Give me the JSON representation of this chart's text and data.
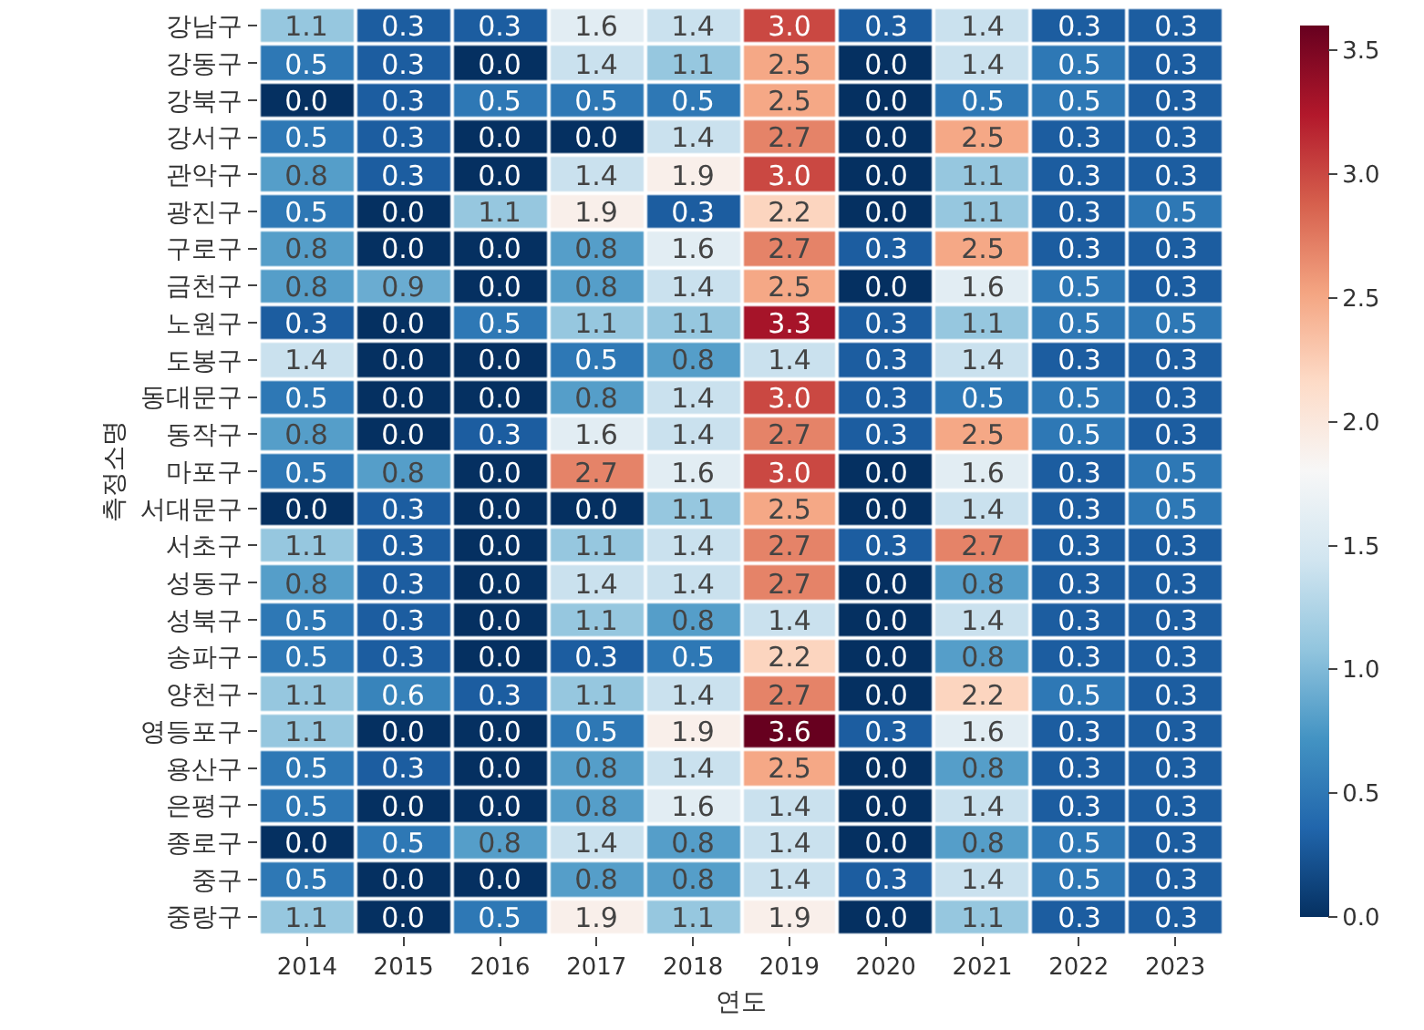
{
  "chart_data": {
    "type": "heatmap",
    "xlabel": "연도",
    "ylabel": "측정소명",
    "clim": [
      0,
      3.6
    ],
    "cticks": [
      {
        "value": 0,
        "label": "0.0"
      },
      {
        "value": 0.5,
        "label": "0.5"
      },
      {
        "value": 1,
        "label": "1.0"
      },
      {
        "value": 1.5,
        "label": "1.5"
      },
      {
        "value": 2,
        "label": "2.0"
      },
      {
        "value": 2.5,
        "label": "2.5"
      },
      {
        "value": 3,
        "label": "3.0"
      },
      {
        "value": 3.5,
        "label": "3.5"
      }
    ],
    "cell_labels": [
      [
        "1.1",
        "0.3",
        "0.3",
        "1.6",
        "1.4",
        "3.0",
        "0.3",
        "1.4",
        "0.3",
        "0.3"
      ],
      [
        "0.5",
        "0.3",
        "0.0",
        "1.4",
        "1.1",
        "2.5",
        "0.0",
        "1.4",
        "0.5",
        "0.3"
      ],
      [
        "0.0",
        "0.3",
        "0.5",
        "0.5",
        "0.5",
        "2.5",
        "0.0",
        "0.5",
        "0.5",
        "0.3"
      ],
      [
        "0.5",
        "0.3",
        "0.0",
        "0.0",
        "1.4",
        "2.7",
        "0.0",
        "2.5",
        "0.3",
        "0.3"
      ],
      [
        "0.8",
        "0.3",
        "0.0",
        "1.4",
        "1.9",
        "3.0",
        "0.0",
        "1.1",
        "0.3",
        "0.3"
      ],
      [
        "0.5",
        "0.0",
        "1.1",
        "1.9",
        "0.3",
        "2.2",
        "0.0",
        "1.1",
        "0.3",
        "0.5"
      ],
      [
        "0.8",
        "0.0",
        "0.0",
        "0.8",
        "1.6",
        "2.7",
        "0.3",
        "2.5",
        "0.3",
        "0.3"
      ],
      [
        "0.8",
        "0.9",
        "0.0",
        "0.8",
        "1.4",
        "2.5",
        "0.0",
        "1.6",
        "0.5",
        "0.3"
      ],
      [
        "0.3",
        "0.0",
        "0.5",
        "1.1",
        "1.1",
        "3.3",
        "0.3",
        "1.1",
        "0.5",
        "0.5"
      ],
      [
        "1.4",
        "0.0",
        "0.0",
        "0.5",
        "0.8",
        "1.4",
        "0.3",
        "1.4",
        "0.3",
        "0.3"
      ],
      [
        "0.5",
        "0.0",
        "0.0",
        "0.8",
        "1.4",
        "3.0",
        "0.3",
        "0.5",
        "0.5",
        "0.3"
      ],
      [
        "0.8",
        "0.0",
        "0.3",
        "1.6",
        "1.4",
        "2.7",
        "0.3",
        "2.5",
        "0.5",
        "0.3"
      ],
      [
        "0.5",
        "0.8",
        "0.0",
        "2.7",
        "1.6",
        "3.0",
        "0.0",
        "1.6",
        "0.3",
        "0.5"
      ],
      [
        "0.0",
        "0.3",
        "0.0",
        "0.0",
        "1.1",
        "2.5",
        "0.0",
        "1.4",
        "0.3",
        "0.5"
      ],
      [
        "1.1",
        "0.3",
        "0.0",
        "1.1",
        "1.4",
        "2.7",
        "0.3",
        "2.7",
        "0.3",
        "0.3"
      ],
      [
        "0.8",
        "0.3",
        "0.0",
        "1.4",
        "1.4",
        "2.7",
        "0.0",
        "0.8",
        "0.3",
        "0.3"
      ],
      [
        "0.5",
        "0.3",
        "0.0",
        "1.1",
        "0.8",
        "1.4",
        "0.0",
        "1.4",
        "0.3",
        "0.3"
      ],
      [
        "0.5",
        "0.3",
        "0.0",
        "0.3",
        "0.5",
        "2.2",
        "0.0",
        "0.8",
        "0.3",
        "0.3"
      ],
      [
        "1.1",
        "0.6",
        "0.3",
        "1.1",
        "1.4",
        "2.7",
        "0.0",
        "2.2",
        "0.5",
        "0.3"
      ],
      [
        "1.1",
        "0.0",
        "0.0",
        "0.5",
        "1.9",
        "3.6",
        "0.3",
        "1.6",
        "0.3",
        "0.3"
      ],
      [
        "0.5",
        "0.3",
        "0.0",
        "0.8",
        "1.4",
        "2.5",
        "0.0",
        "0.8",
        "0.3",
        "0.3"
      ],
      [
        "0.5",
        "0.0",
        "0.0",
        "0.8",
        "1.6",
        "1.4",
        "0.0",
        "1.4",
        "0.3",
        "0.3"
      ],
      [
        "0.0",
        "0.5",
        "0.8",
        "1.4",
        "0.8",
        "1.4",
        "0.0",
        "0.8",
        "0.5",
        "0.3"
      ],
      [
        "0.5",
        "0.0",
        "0.0",
        "0.8",
        "0.8",
        "1.4",
        "0.3",
        "1.4",
        "0.5",
        "0.3"
      ],
      [
        "1.1",
        "0.0",
        "0.5",
        "1.9",
        "1.1",
        "1.9",
        "0.0",
        "1.1",
        "0.3",
        "0.3"
      ]
    ],
    "categories": [
      "2014",
      "2015",
      "2016",
      "2017",
      "2018",
      "2019",
      "2020",
      "2021",
      "2022",
      "2023"
    ],
    "y_categories": [
      "강남구",
      "강동구",
      "강북구",
      "강서구",
      "관악구",
      "광진구",
      "구로구",
      "금천구",
      "노원구",
      "도봉구",
      "동대문구",
      "동작구",
      "마포구",
      "서대문구",
      "서초구",
      "성동구",
      "성북구",
      "송파구",
      "양천구",
      "영등포구",
      "용산구",
      "은평구",
      "종로구",
      "중구",
      "중랑구"
    ],
    "cells": [
      [
        1.1,
        0.3,
        0.3,
        1.6,
        1.4,
        3.0,
        0.3,
        1.4,
        0.3,
        0.3
      ],
      [
        0.5,
        0.3,
        0.0,
        1.4,
        1.1,
        2.5,
        0.0,
        1.4,
        0.5,
        0.3
      ],
      [
        0.0,
        0.3,
        0.5,
        0.5,
        0.5,
        2.5,
        0.0,
        0.5,
        0.5,
        0.3
      ],
      [
        0.5,
        0.3,
        0.0,
        0.0,
        1.4,
        2.7,
        0.0,
        2.5,
        0.3,
        0.3
      ],
      [
        0.8,
        0.3,
        0.0,
        1.4,
        1.9,
        3.0,
        0.0,
        1.1,
        0.3,
        0.3
      ],
      [
        0.5,
        0.0,
        1.1,
        1.9,
        0.3,
        2.2,
        0.0,
        1.1,
        0.3,
        0.5
      ],
      [
        0.8,
        0.0,
        0.0,
        0.8,
        1.6,
        2.7,
        0.3,
        2.5,
        0.3,
        0.3
      ],
      [
        0.8,
        0.9,
        0.0,
        0.8,
        1.4,
        2.5,
        0.0,
        1.6,
        0.5,
        0.3
      ],
      [
        0.3,
        0.0,
        0.5,
        1.1,
        1.1,
        3.3,
        0.3,
        1.1,
        0.5,
        0.5
      ],
      [
        1.4,
        0.0,
        0.0,
        0.5,
        0.8,
        1.4,
        0.3,
        1.4,
        0.3,
        0.3
      ],
      [
        0.5,
        0.0,
        0.0,
        0.8,
        1.4,
        3.0,
        0.3,
        0.5,
        0.5,
        0.3
      ],
      [
        0.8,
        0.0,
        0.3,
        1.6,
        1.4,
        2.7,
        0.3,
        2.5,
        0.5,
        0.3
      ],
      [
        0.5,
        0.8,
        0.0,
        2.7,
        1.6,
        3.0,
        0.0,
        1.6,
        0.3,
        0.5
      ],
      [
        0.0,
        0.3,
        0.0,
        0.0,
        1.1,
        2.5,
        0.0,
        1.4,
        0.3,
        0.5
      ],
      [
        1.1,
        0.3,
        0.0,
        1.1,
        1.4,
        2.7,
        0.3,
        2.7,
        0.3,
        0.3
      ],
      [
        0.8,
        0.3,
        0.0,
        1.4,
        1.4,
        2.7,
        0.0,
        0.8,
        0.3,
        0.3
      ],
      [
        0.5,
        0.3,
        0.0,
        1.1,
        0.8,
        1.4,
        0.0,
        1.4,
        0.3,
        0.3
      ],
      [
        0.5,
        0.3,
        0.0,
        0.3,
        0.5,
        2.2,
        0.0,
        0.8,
        0.3,
        0.3
      ],
      [
        1.1,
        0.6,
        0.3,
        1.1,
        1.4,
        2.7,
        0.0,
        2.2,
        0.5,
        0.3
      ],
      [
        1.1,
        0.0,
        0.0,
        0.5,
        1.9,
        3.6,
        0.3,
        1.6,
        0.3,
        0.3
      ],
      [
        0.5,
        0.3,
        0.0,
        0.8,
        1.4,
        2.5,
        0.0,
        0.8,
        0.3,
        0.3
      ],
      [
        0.5,
        0.0,
        0.0,
        0.8,
        1.6,
        1.4,
        0.0,
        1.4,
        0.3,
        0.3
      ],
      [
        0.0,
        0.5,
        0.8,
        1.4,
        0.8,
        1.4,
        0.0,
        0.8,
        0.5,
        0.3
      ],
      [
        0.5,
        0.0,
        0.0,
        0.8,
        0.8,
        1.4,
        0.3,
        1.4,
        0.5,
        0.3
      ],
      [
        1.1,
        0.0,
        0.5,
        1.9,
        1.1,
        1.9,
        0.0,
        1.1,
        0.3,
        0.3
      ]
    ]
  }
}
